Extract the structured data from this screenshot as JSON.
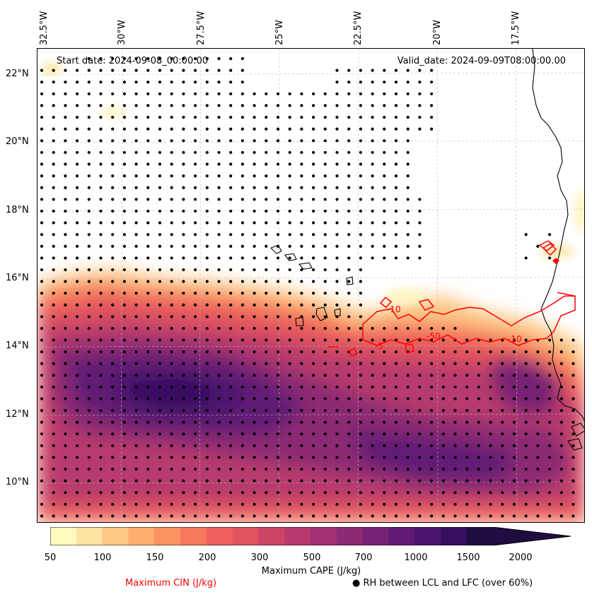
{
  "header": {
    "start_label": "Start date: 2024-09-08_00:00:00",
    "valid_label": "Valid_date: 2024-09-09T08:00:00.00"
  },
  "axes": {
    "lon_labels": [
      "32.5°W",
      "30°W",
      "27.5°W",
      "25°W",
      "22.5°W",
      "20°W",
      "17.5°W"
    ],
    "lat_labels": [
      "22°N",
      "20°N",
      "18°N",
      "16°N",
      "14°N",
      "12°N",
      "10°N"
    ]
  },
  "contours": {
    "cin_labels": [
      "-10",
      "-50",
      "-5",
      "-10"
    ],
    "cin_color": "#ff0000"
  },
  "colorbar": {
    "title": "Maximum CAPE (J/kg)",
    "ticks": [
      "50",
      "100",
      "150",
      "200",
      "300",
      "500",
      "700",
      "1000",
      "1500",
      "2000"
    ],
    "colors": [
      "#fffbbe",
      "#fee3a1",
      "#fdc886",
      "#fdad6f",
      "#fb9262",
      "#f7785c",
      "#ef6161",
      "#e0535f",
      "#cc4466",
      "#b83a6d",
      "#a33171",
      "#8c2a73",
      "#772374",
      "#621b74",
      "#4d1470",
      "#360f5f",
      "#1e0d40"
    ]
  },
  "legend": {
    "cin_label": "Maximum CIN (J/kg)",
    "cin_color": "#ff0000",
    "rh_label": "● RH between LCL and LFC (over 60%)"
  }
}
